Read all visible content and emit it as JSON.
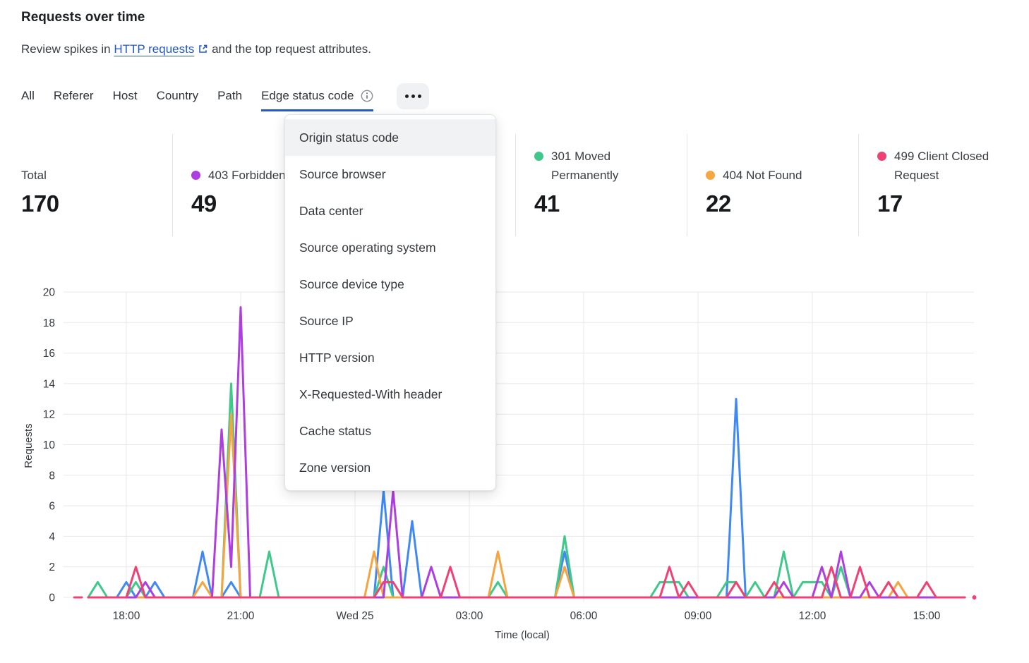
{
  "header": {
    "title": "Requests over time",
    "subtitle_prefix": "Review spikes in ",
    "link_text": "HTTP requests",
    "subtitle_suffix": " and the top request attributes."
  },
  "tabs": {
    "items": [
      "All",
      "Referer",
      "Host",
      "Country",
      "Path",
      "Edge status code"
    ],
    "active_tab": "Edge status code"
  },
  "stats": [
    {
      "label": "Total",
      "value": "170",
      "color": null
    },
    {
      "label": "403 Forbidden",
      "value": "49",
      "color": "#ae3ee0"
    },
    {
      "label": "",
      "value": "",
      "color": null,
      "covered_by_menu": true
    },
    {
      "label": "301 Moved Permanently",
      "value": "41",
      "color": "#3ec98b"
    },
    {
      "label": "404 Not Found",
      "value": "22",
      "color": "#f5a742"
    },
    {
      "label": "499 Client Closed Request",
      "value": "17",
      "color": "#ef4173"
    }
  ],
  "menu": {
    "highlighted_item": "Origin status code",
    "items": [
      "Origin status code",
      "Source browser",
      "Data center",
      "Source operating system",
      "Source device type",
      "Source IP",
      "HTTP version",
      "X-Requested-With header",
      "Cache status",
      "Zone version"
    ]
  },
  "accent_color": "#2458c9",
  "chart_data": {
    "type": "line",
    "xlabel": "Time (local)",
    "ylabel": "Requests",
    "ylim": [
      0,
      20
    ],
    "y_ticks": [
      0,
      2,
      4,
      6,
      8,
      10,
      12,
      14,
      16,
      18,
      20
    ],
    "grid": true,
    "legend_position": "none",
    "interval_minutes": 15,
    "window_start_time": "16:30",
    "x_ticks": [
      {
        "label": "18:00",
        "time": "18:00"
      },
      {
        "label": "21:00",
        "time": "21:00"
      },
      {
        "label": "Wed 25",
        "time": "00:00"
      },
      {
        "label": "03:00",
        "time": "03:00"
      },
      {
        "label": "06:00",
        "time": "06:00"
      },
      {
        "label": "09:00",
        "time": "09:00"
      },
      {
        "label": "12:00",
        "time": "12:00"
      },
      {
        "label": "15:00",
        "time": "15:00"
      }
    ],
    "baseline_value": 0,
    "series": [
      {
        "name": "",
        "note_color_only": "blue line, label hidden behind open menu",
        "color": "#4189f2",
        "spikes": [
          [
            "18:00",
            1
          ],
          [
            "18:45",
            1
          ],
          [
            "20:00",
            3
          ],
          [
            "20:45",
            1
          ],
          [
            "00:45",
            7
          ],
          [
            "01:30",
            5
          ],
          [
            "05:30",
            3
          ],
          [
            "10:00",
            13
          ]
        ]
      },
      {
        "name": "301 Moved Permanently",
        "color": "#3ec98b",
        "spikes": [
          [
            "17:15",
            1
          ],
          [
            "18:15",
            1
          ],
          [
            "20:45",
            14
          ],
          [
            "21:45",
            3
          ],
          [
            "00:45",
            2
          ],
          [
            "03:45",
            1
          ],
          [
            "05:30",
            4
          ],
          [
            "08:00",
            1
          ],
          [
            "08:15",
            1
          ],
          [
            "08:30",
            1
          ],
          [
            "09:45",
            1
          ],
          [
            "10:00",
            1
          ],
          [
            "10:30",
            1
          ],
          [
            "11:15",
            3
          ],
          [
            "11:45",
            1
          ],
          [
            "12:00",
            1
          ],
          [
            "12:15",
            1
          ],
          [
            "12:45",
            2
          ],
          [
            "14:00",
            1
          ]
        ]
      },
      {
        "name": "404 Not Found",
        "color": "#f5a43f",
        "spikes": [
          [
            "20:00",
            1
          ],
          [
            "20:45",
            12
          ],
          [
            "00:30",
            3
          ],
          [
            "03:45",
            3
          ],
          [
            "05:30",
            2
          ],
          [
            "14:15",
            1
          ]
        ]
      },
      {
        "name": "403 Forbidden",
        "color": "#ae3ee0",
        "spikes": [
          [
            "18:30",
            1
          ],
          [
            "20:30",
            11
          ],
          [
            "20:45",
            2
          ],
          [
            "21:00",
            19
          ],
          [
            "01:00",
            7
          ],
          [
            "02:00",
            2
          ],
          [
            "11:15",
            1
          ],
          [
            "12:15",
            2
          ],
          [
            "12:45",
            3
          ],
          [
            "13:30",
            1
          ]
        ]
      },
      {
        "name": "499 Client Closed Request",
        "color": "#ef4173",
        "spikes": [
          [
            "18:15",
            2
          ],
          [
            "00:45",
            1
          ],
          [
            "01:00",
            1
          ],
          [
            "02:30",
            2
          ],
          [
            "08:15",
            2
          ],
          [
            "08:45",
            1
          ],
          [
            "10:00",
            1
          ],
          [
            "11:00",
            1
          ],
          [
            "12:30",
            2
          ],
          [
            "13:15",
            2
          ],
          [
            "14:00",
            1
          ],
          [
            "15:00",
            1
          ]
        ]
      }
    ],
    "stray_marks": [
      {
        "type": "dash",
        "color": "#ef4173",
        "from": "16:38",
        "to": "16:50",
        "value": 0
      },
      {
        "type": "dot",
        "color": "#ef4173",
        "at": "16:15",
        "value": 0
      }
    ]
  }
}
